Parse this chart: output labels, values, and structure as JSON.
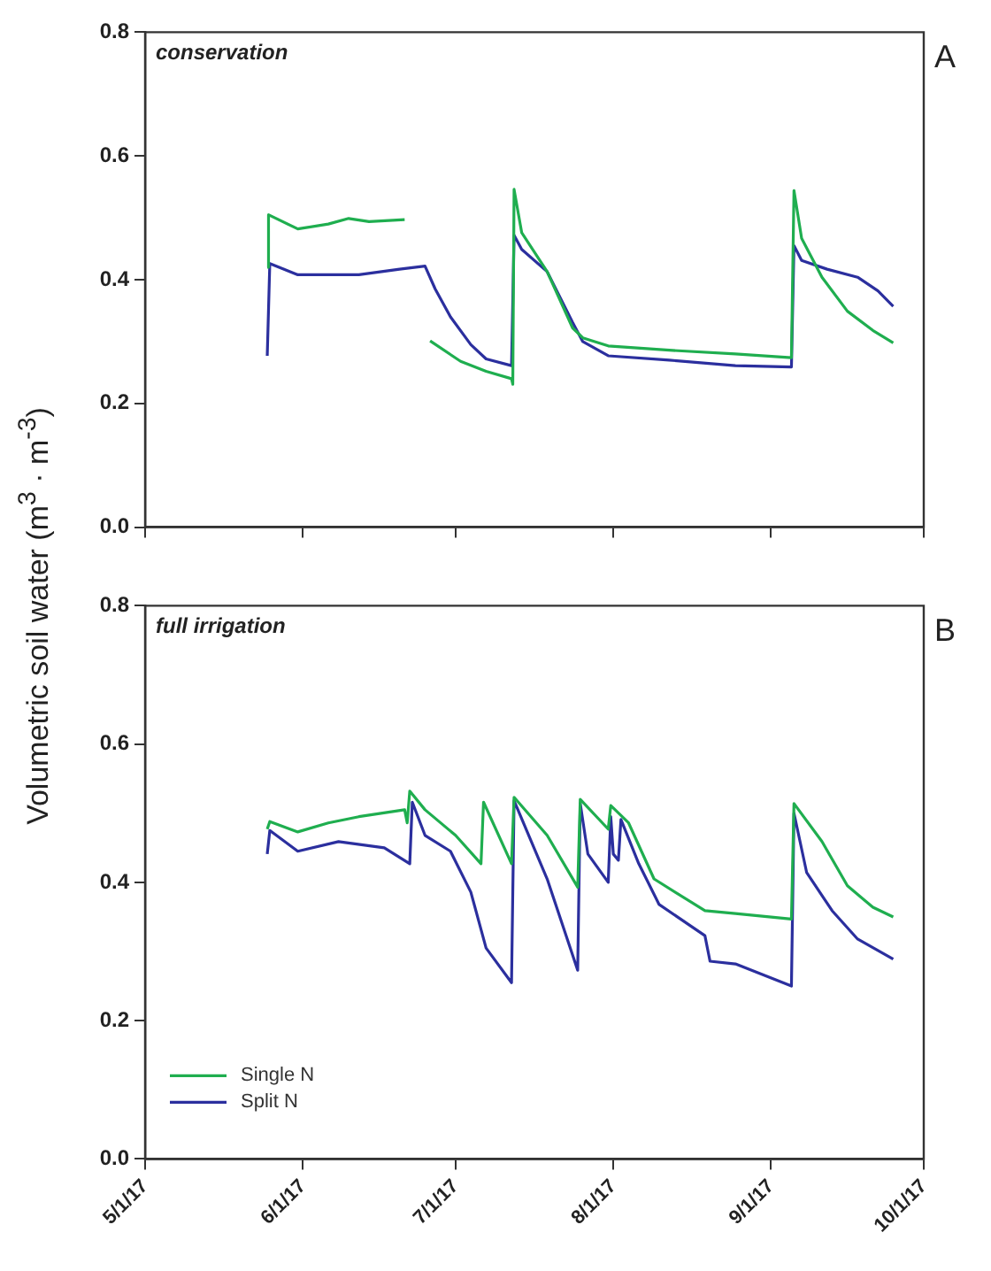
{
  "chart_data": [
    {
      "type": "line",
      "ylabel": "Volumetric soil water (m$^{3}$ · m$^{-3}$)",
      "annotations": [
        "conservation",
        "A"
      ],
      "xlim": [
        "2017-05-01",
        "2017-10-01"
      ],
      "xticks": [
        {
          "value": "2017-05-01",
          "label": null
        },
        {
          "value": "2017-06-01",
          "label": null
        },
        {
          "value": "2017-07-01",
          "label": null
        },
        {
          "value": "2017-08-01",
          "label": null
        },
        {
          "value": "2017-09-01",
          "label": null
        },
        {
          "value": "2017-10-01",
          "label": null
        }
      ],
      "ylim": [
        0,
        0.8
      ],
      "yticks": [
        {
          "value": 0,
          "label": "0.0"
        },
        0.2,
        0.4,
        0.6,
        0.8
      ],
      "tick_labels": "y",
      "grid": false,
      "legend": false,
      "marker": "none",
      "line_style": "solid",
      "series": [
        {
          "color": "#1fae4f",
          "x": [
            "2017-05-25T00:00",
            "2017-05-25T06:00",
            "2017-05-31",
            "2017-06-06",
            "2017-06-10",
            "2017-06-14",
            "2017-06-21",
            "2017-06-21T12:00",
            "2017-06-26",
            "2017-07-02",
            "2017-07-07",
            "2017-07-12",
            "2017-07-12T06:00",
            "2017-07-12T12:00",
            "2017-07-14",
            "2017-07-19",
            "2017-07-24",
            "2017-07-26",
            "2017-07-31",
            "2017-08-12",
            "2017-08-25",
            "2017-09-05",
            "2017-09-05T12:00",
            "2017-09-07",
            "2017-09-11",
            "2017-09-16",
            "2017-09-21",
            "2017-09-25"
          ],
          "values": [
            0.42,
            0.505,
            0.482,
            0.49,
            0.499,
            0.494,
            0.497,
            null,
            0.301,
            0.268,
            0.252,
            0.24,
            0.231,
            0.546,
            0.476,
            0.413,
            0.322,
            0.306,
            0.293,
            0.286,
            0.28,
            0.274,
            0.544,
            0.467,
            0.404,
            0.349,
            0.318,
            0.298
          ]
        },
        {
          "color": "#2b2f9e",
          "x": [
            "2017-05-25T00:00",
            "2017-05-25T12:00",
            "2017-05-31",
            "2017-06-12",
            "2017-06-20",
            "2017-06-25",
            "2017-06-27",
            "2017-06-30",
            "2017-07-04",
            "2017-07-07",
            "2017-07-12",
            "2017-07-12T12:00",
            "2017-07-14",
            "2017-07-19",
            "2017-07-24",
            "2017-07-26",
            "2017-07-31",
            "2017-08-12",
            "2017-08-25",
            "2017-09-05",
            "2017-09-05T12:00",
            "2017-09-07",
            "2017-09-12",
            "2017-09-18",
            "2017-09-22",
            "2017-09-25"
          ],
          "values": [
            0.277,
            0.426,
            0.408,
            0.408,
            0.417,
            0.422,
            0.385,
            0.34,
            0.295,
            0.272,
            0.261,
            0.472,
            0.449,
            0.413,
            0.331,
            0.3,
            0.277,
            0.27,
            0.261,
            0.259,
            0.455,
            0.431,
            0.417,
            0.404,
            0.382,
            0.357
          ]
        }
      ]
    },
    {
      "type": "line",
      "annotations": [
        "full irrigation",
        "B"
      ],
      "xlim": [
        "2017-05-01",
        "2017-10-01"
      ],
      "xticks": [
        {
          "value": "2017-05-01",
          "label": "5/1/17"
        },
        {
          "value": "2017-06-01",
          "label": "6/1/17"
        },
        {
          "value": "2017-07-01",
          "label": "7/1/17"
        },
        {
          "value": "2017-08-01",
          "label": "8/1/17"
        },
        {
          "value": "2017-09-01",
          "label": "9/1/17"
        },
        {
          "value": "2017-10-01",
          "label": "10/1/17"
        }
      ],
      "ylim": [
        0,
        0.8
      ],
      "yticks": [
        {
          "value": 0,
          "label": "0.0"
        },
        0.2,
        0.4,
        0.6,
        0.8
      ],
      "grid": false,
      "legend": "bottom left",
      "marker": "none",
      "line_style": "solid",
      "series": [
        {
          "name": "Single N",
          "color": "#1fae4f",
          "x": [
            "2017-05-25T00:00",
            "2017-05-25T12:00",
            "2017-05-31",
            "2017-06-06",
            "2017-06-12",
            "2017-06-21",
            "2017-06-21T12:00",
            "2017-06-22",
            "2017-06-25",
            "2017-07-01",
            "2017-07-06",
            "2017-07-06T12:00",
            "2017-07-12",
            "2017-07-12T12:00",
            "2017-07-19",
            "2017-07-25",
            "2017-07-25T12:00",
            "2017-07-31",
            "2017-07-31T12:00",
            "2017-08-04",
            "2017-08-09",
            "2017-08-19",
            "2017-08-25",
            "2017-09-05",
            "2017-09-05T12:00",
            "2017-09-11",
            "2017-09-16",
            "2017-09-21",
            "2017-09-25"
          ],
          "values": [
            0.477,
            0.488,
            0.473,
            0.486,
            0.495,
            0.505,
            0.486,
            0.532,
            0.505,
            0.468,
            0.427,
            0.516,
            0.427,
            0.523,
            0.468,
            0.393,
            0.52,
            0.477,
            0.511,
            0.486,
            0.405,
            0.359,
            0.355,
            0.347,
            0.514,
            0.459,
            0.395,
            0.364,
            0.35
          ]
        },
        {
          "name": "Split N",
          "color": "#2b2f9e",
          "x": [
            "2017-05-25T00:00",
            "2017-05-25T12:00",
            "2017-05-31",
            "2017-06-08",
            "2017-06-17",
            "2017-06-22",
            "2017-06-22T12:00",
            "2017-06-25",
            "2017-06-30",
            "2017-07-04",
            "2017-07-07",
            "2017-07-12",
            "2017-07-12T12:00",
            "2017-07-19",
            "2017-07-25",
            "2017-07-25T12:00",
            "2017-07-27",
            "2017-07-31",
            "2017-07-31T12:00",
            "2017-08-01",
            "2017-08-02",
            "2017-08-02T12:00",
            "2017-08-06",
            "2017-08-10",
            "2017-08-19",
            "2017-08-20",
            "2017-08-25",
            "2017-09-05",
            "2017-09-05T12:00",
            "2017-09-08",
            "2017-09-13",
            "2017-09-18",
            "2017-09-25"
          ],
          "values": [
            0.441,
            0.475,
            0.445,
            0.459,
            0.45,
            0.427,
            0.516,
            0.468,
            0.445,
            0.386,
            0.305,
            0.255,
            0.518,
            0.405,
            0.273,
            0.514,
            0.441,
            0.4,
            0.495,
            0.441,
            0.432,
            0.491,
            0.427,
            0.368,
            0.323,
            0.286,
            0.282,
            0.25,
            0.5,
            0.414,
            0.359,
            0.318,
            0.289
          ]
        }
      ]
    }
  ]
}
